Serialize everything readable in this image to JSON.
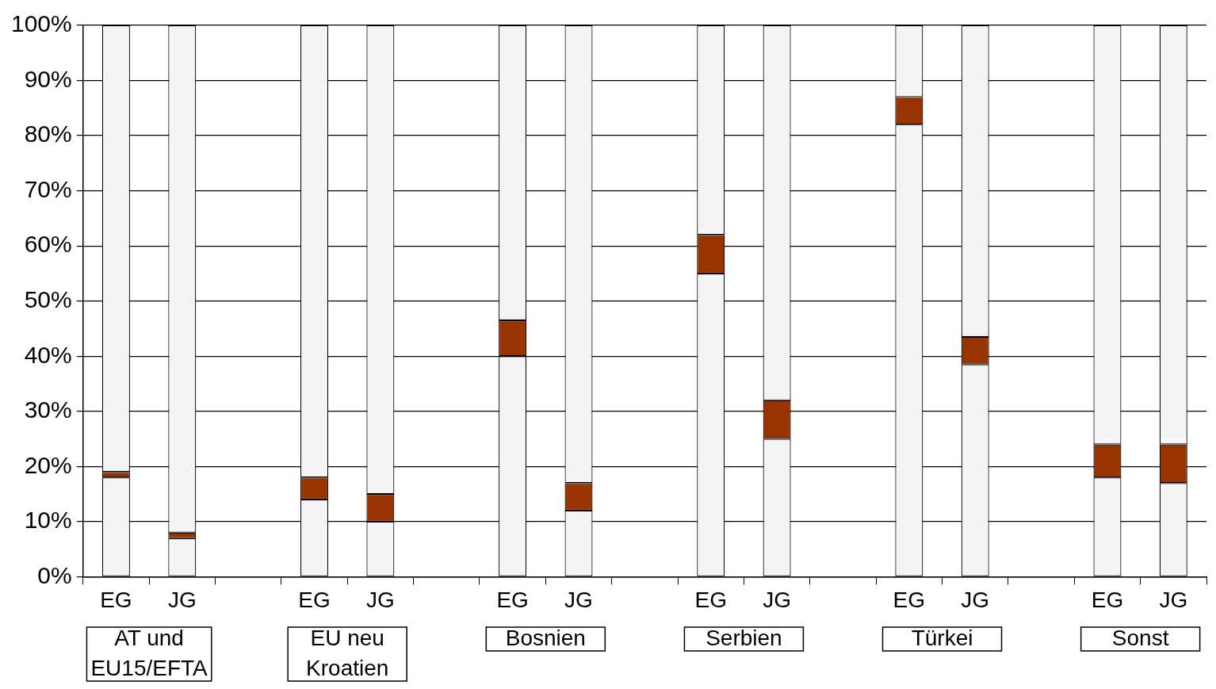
{
  "chart_data": {
    "type": "bar",
    "stacked": true,
    "categories": [
      "EG",
      "JG",
      null,
      "EG",
      "JG",
      null,
      "EG",
      "JG",
      null,
      "EG",
      "JG",
      null,
      "EG",
      "JG",
      null,
      "EG",
      "JG"
    ],
    "series": [
      {
        "color": "#f4f4f4",
        "values": [
          18,
          7,
          null,
          14,
          10,
          null,
          40,
          12,
          null,
          55,
          25,
          null,
          82,
          38.5,
          null,
          18,
          17
        ]
      },
      {
        "color": "#993300",
        "values": [
          1,
          1,
          null,
          4,
          5,
          null,
          6.5,
          5,
          null,
          7,
          7,
          null,
          5,
          5,
          null,
          6,
          7
        ]
      },
      {
        "color": "#f4f4f4",
        "values": [
          81,
          92,
          null,
          82,
          85,
          null,
          53.5,
          83,
          null,
          38,
          68,
          null,
          13,
          56.5,
          null,
          76,
          76
        ]
      }
    ],
    "ylim": [
      0,
      100
    ],
    "yticks": [
      {
        "value": 0,
        "label": "0%"
      },
      {
        "value": 10,
        "label": "10%"
      },
      {
        "value": 20,
        "label": "20%"
      },
      {
        "value": 30,
        "label": "30%"
      },
      {
        "value": 40,
        "label": "40%"
      },
      {
        "value": 50,
        "label": "50%"
      },
      {
        "value": 60,
        "label": "60%"
      },
      {
        "value": 70,
        "label": "70%"
      },
      {
        "value": 80,
        "label": "80%"
      },
      {
        "value": 90,
        "label": "90%"
      },
      {
        "value": 100,
        "label": "100%"
      }
    ],
    "grid": "y",
    "legend": false,
    "annotations": [
      "AT und EU15/EFTA",
      "EU neu Kroatien",
      "Bosnien",
      "Serbien",
      "Türkei",
      "Sonst"
    ]
  }
}
